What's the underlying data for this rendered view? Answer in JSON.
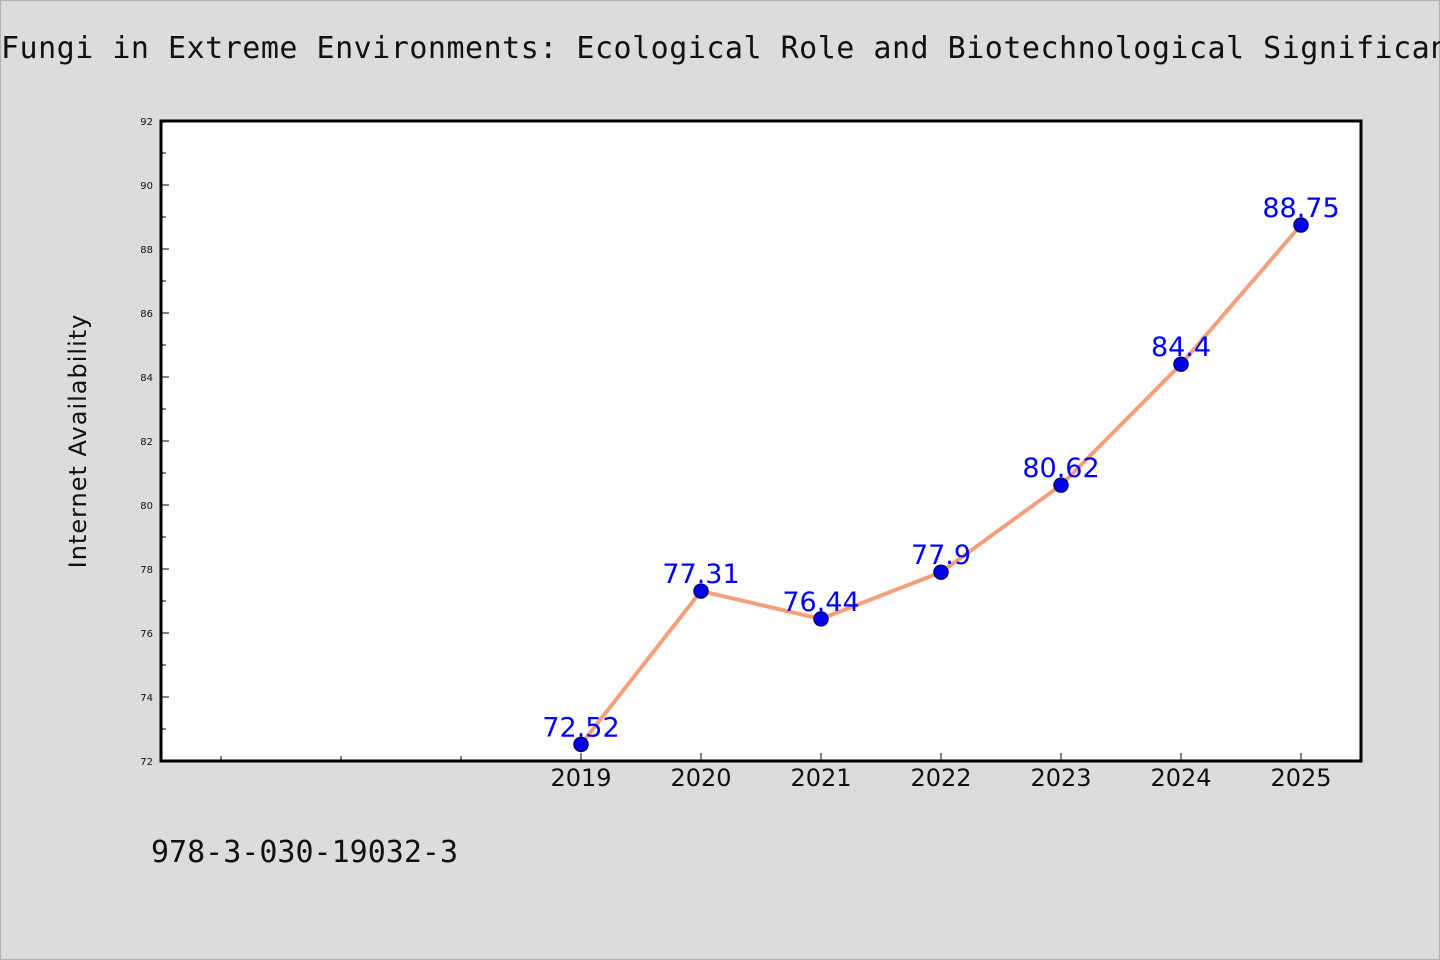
{
  "chart_data": {
    "type": "line",
    "title": "Fungi in Extreme Environments: Ecological Role and Biotechnological Significance",
    "xlabel": "",
    "ylabel": "Internet Availability",
    "x": [
      "2019",
      "2020",
      "2021",
      "2022",
      "2023",
      "2024",
      "2025"
    ],
    "series": [
      {
        "values": [
          72.52,
          77.31,
          76.44,
          77.9,
          80.62,
          84.4,
          88.75
        ],
        "labels": [
          "72.52",
          "77.31",
          "76.44",
          "77.9",
          "80.62",
          "84.4",
          "88.75"
        ]
      }
    ],
    "ylim": [
      72,
      92
    ],
    "yticks": [
      "72",
      "74",
      "76",
      "78",
      "80",
      "82",
      "84",
      "86",
      "88",
      "90",
      "92"
    ],
    "grid": false,
    "legend": "none",
    "colors": {
      "line": "#f4a07c",
      "marker": "#0000ee",
      "marker_edge": "#000066",
      "data_label": "#0000ff",
      "background": "#dcdcdc",
      "plot_background": "#ffffff"
    }
  },
  "footer": {
    "isbn": "978-3-030-19032-3"
  }
}
